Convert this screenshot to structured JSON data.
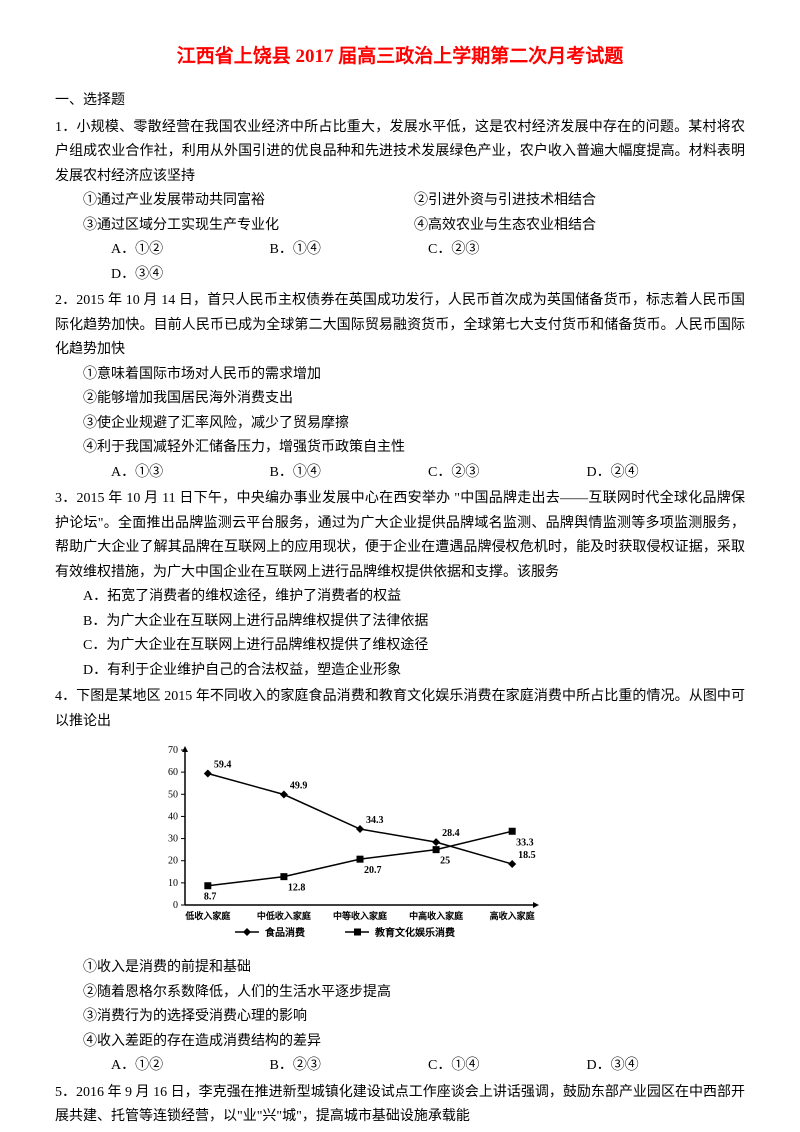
{
  "title": "江西省上饶县 2017 届高三政治上学期第二次月考试题",
  "section1": "一、选择题",
  "q1": {
    "text": "1．小规模、零散经营在我国农业经济中所占比重大，发展水平低，这是农村经济发展中存在的问题。某村将农户组成农业合作社，利用从外国引进的优良品种和先进技术发展绿色产业，农户收入普遍大幅度提高。材料表明发展农村经济应该坚持",
    "s1": "①通过产业发展带动共同富裕",
    "s2": "②引进外资与引进技术相结合",
    "s3": "③通过区域分工实现生产专业化",
    "s4": "④高效农业与生态农业相结合",
    "oA": "A．①②",
    "oB": "B．①④",
    "oC": "C．②③",
    "oD": "D．③④"
  },
  "q2": {
    "text": "2．2015 年 10 月 14 日，首只人民币主权债券在英国成功发行，人民币首次成为英国储备货币，标志着人民币国际化趋势加快。目前人民币已成为全球第二大国际贸易融资货币，全球第七大支付货币和储备货币。人民币国际化趋势加快",
    "s1": "①意味着国际市场对人民币的需求增加",
    "s2": "②能够增加我国居民海外消费支出",
    "s3": "③使企业规避了汇率风险，减少了贸易摩擦",
    "s4": "④利于我国减轻外汇储备压力，增强货币政策自主性",
    "oA": "A．①③",
    "oB": "B．①④",
    "oC": "C．②③",
    "oD": "D．②④"
  },
  "q3": {
    "text": "3．2015 年 10 月 11 日下午，中央编办事业发展中心在西安举办 \"中国品牌走出去——互联网时代全球化品牌保护论坛\"。全面推出品牌监测云平台服务，通过为广大企业提供品牌域名监测、品牌舆情监测等多项监测服务，帮助广大企业了解其品牌在互联网上的应用现状，便于企业在遭遇品牌侵权危机时，能及时获取侵权证据，采取有效维权措施，为广大中国企业在互联网上进行品牌维权提供依据和支撑。该服务",
    "oA": "A．拓宽了消费者的维权途径，维护了消费者的权益",
    "oB": "B．为广大企业在互联网上进行品牌维权提供了法律依据",
    "oC": "C．为广大企业在互联网上进行品牌维权提供了维权途径",
    "oD": "D．有利于企业维护自己的合法权益，塑造企业形象"
  },
  "q4": {
    "text": "4．下图是某地区 2015 年不同收入的家庭食品消费和教育文化娱乐消费在家庭消费中所占比重的情况。从图中可以推论出",
    "s1": "①收入是消费的前提和基础",
    "s2": "②随着恩格尔系数降低，人们的生活水平逐步提高",
    "s3": "③消费行为的选择受消费心理的影响",
    "s4": "④收入差距的存在造成消费结构的差异",
    "oA": "A．①②",
    "oB": "B．②③",
    "oC": "C．①④",
    "oD": "D．③④"
  },
  "q5": {
    "text": "5．2016 年 9 月 16 日，李克强在推进新型城镇化建设试点工作座谈会上讲话强调，鼓励东部产业园区在中西部开展共建、托管等连锁经营，以\"业\"兴\"城\"，提高城市基础设施承载能"
  },
  "chart": {
    "yTicks": [
      0,
      10,
      20,
      30,
      40,
      50,
      60,
      70
    ],
    "ylim": [
      0,
      70
    ],
    "categories": [
      "低收入家庭",
      "中低收入家庭",
      "中等收入家庭",
      "中高收入家庭",
      "高收入家庭"
    ],
    "series1": {
      "name": "食品消费",
      "marker": "diamond",
      "values": [
        59.4,
        49.9,
        34.3,
        28.4,
        18.5
      ],
      "labels": [
        "59.4",
        "49.9",
        "34.3",
        "28.4",
        "18.5"
      ]
    },
    "series2": {
      "name": "教育文化娱乐消费",
      "marker": "square",
      "values": [
        8.7,
        12.8,
        20.7,
        25,
        33.3
      ],
      "labels": [
        "8.7",
        "12.8",
        "20.7",
        "25",
        "33.3"
      ]
    },
    "axisColor": "#000000",
    "lineColor": "#000000",
    "fontSize": 10,
    "background": "#ffffff"
  }
}
